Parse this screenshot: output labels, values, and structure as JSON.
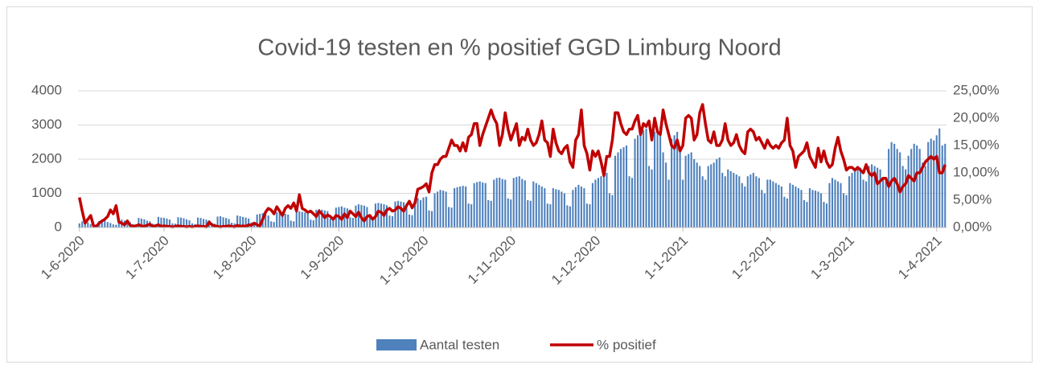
{
  "chart_data": {
    "type": "bar-line",
    "title": "Covid-19 testen en % positief GGD Limburg Noord",
    "categories": [
      "1-6-2020",
      null,
      null,
      null,
      null,
      null,
      null,
      null,
      null,
      null,
      null,
      null,
      null,
      null,
      null,
      null,
      null,
      null,
      null,
      null,
      null,
      null,
      null,
      null,
      null,
      null,
      null,
      null,
      null,
      null,
      "1-7-2020",
      null,
      null,
      null,
      null,
      null,
      null,
      null,
      null,
      null,
      null,
      null,
      null,
      null,
      null,
      null,
      null,
      null,
      null,
      null,
      null,
      null,
      null,
      null,
      null,
      null,
      null,
      null,
      null,
      null,
      null,
      "1-8-2020",
      null,
      null,
      null,
      null,
      null,
      null,
      null,
      null,
      null,
      null,
      null,
      null,
      null,
      null,
      null,
      null,
      null,
      null,
      null,
      null,
      null,
      null,
      null,
      null,
      null,
      null,
      null,
      null,
      null,
      null,
      "1-9-2020",
      null,
      null,
      null,
      null,
      null,
      null,
      null,
      null,
      null,
      null,
      null,
      null,
      null,
      null,
      null,
      null,
      null,
      null,
      null,
      null,
      null,
      null,
      null,
      null,
      null,
      null,
      null,
      null,
      null,
      "1-10-2020",
      null,
      null,
      null,
      null,
      null,
      null,
      null,
      null,
      null,
      null,
      null,
      null,
      null,
      null,
      null,
      null,
      null,
      null,
      null,
      null,
      null,
      null,
      null,
      null,
      null,
      null,
      null,
      null,
      null,
      null,
      "1-11-2020",
      null,
      null,
      null,
      null,
      null,
      null,
      null,
      null,
      null,
      null,
      null,
      null,
      null,
      null,
      null,
      null,
      null,
      null,
      null,
      null,
      null,
      null,
      null,
      null,
      null,
      null,
      null,
      null,
      null,
      "1-12-2020",
      null,
      null,
      null,
      null,
      null,
      null,
      null,
      null,
      null,
      null,
      null,
      null,
      null,
      null,
      null,
      null,
      null,
      null,
      null,
      null,
      null,
      null,
      null,
      null,
      null,
      null,
      null,
      null,
      null,
      null,
      "1-1-2021",
      null,
      null,
      null,
      null,
      null,
      null,
      null,
      null,
      null,
      null,
      null,
      null,
      null,
      null,
      null,
      null,
      null,
      null,
      null,
      null,
      null,
      null,
      null,
      null,
      null,
      null,
      null,
      null,
      null,
      null,
      "1-2-2021",
      null,
      null,
      null,
      null,
      null,
      null,
      null,
      null,
      null,
      null,
      null,
      null,
      null,
      null,
      null,
      null,
      null,
      null,
      null,
      null,
      null,
      null,
      null,
      null,
      null,
      null,
      null,
      "1-3-2021",
      null,
      null,
      null,
      null,
      null,
      null,
      null,
      null,
      null,
      null,
      null,
      null,
      null,
      null,
      null,
      null,
      null,
      null,
      null,
      null,
      null,
      null,
      null,
      null,
      null,
      null,
      null,
      null,
      null,
      null,
      "1-4-2021",
      null,
      null,
      null
    ],
    "series": [
      {
        "name": "Aantal testen",
        "color": "#4f81bd",
        "type": "bar",
        "values": [
          120,
          180,
          200,
          150,
          100,
          60,
          70,
          190,
          220,
          210,
          160,
          130,
          90,
          80,
          250,
          230,
          200,
          180,
          150,
          100,
          90,
          280,
          260,
          240,
          200,
          180,
          110,
          100,
          310,
          290,
          280,
          260,
          230,
          120,
          110,
          300,
          290,
          270,
          240,
          210,
          120,
          100,
          290,
          280,
          250,
          230,
          210,
          130,
          110,
          320,
          330,
          300,
          280,
          250,
          140,
          120,
          350,
          330,
          310,
          290,
          260,
          150,
          130,
          380,
          400,
          420,
          380,
          350,
          180,
          160,
          450,
          430,
          420,
          400,
          380,
          200,
          180,
          450,
          470,
          460,
          440,
          420,
          230,
          210,
          520,
          540,
          520,
          500,
          480,
          260,
          240,
          580,
          600,
          620,
          580,
          560,
          300,
          280,
          640,
          680,
          660,
          640,
          600,
          320,
          300,
          700,
          720,
          700,
          680,
          650,
          350,
          330,
          760,
          780,
          760,
          740,
          700,
          380,
          360,
          820,
          860,
          800,
          880,
          900,
          500,
          480,
          1000,
          1050,
          1100,
          1080,
          1050,
          600,
          580,
          1150,
          1180,
          1200,
          1220,
          1200,
          700,
          680,
          1300,
          1330,
          1350,
          1320,
          1300,
          800,
          780,
          1400,
          1450,
          1460,
          1420,
          1400,
          850,
          820,
          1450,
          1480,
          1500,
          1420,
          1380,
          800,
          780,
          1350,
          1300,
          1250,
          1200,
          1150,
          700,
          680,
          1150,
          1120,
          1100,
          1050,
          1000,
          650,
          620,
          1100,
          1180,
          1250,
          1200,
          1150,
          700,
          680,
          1300,
          1400,
          1450,
          1500,
          1550,
          1600,
          1000,
          950,
          2100,
          2200,
          2300,
          2350,
          2400,
          1500,
          1450,
          2600,
          2700,
          2800,
          2850,
          2900,
          1800,
          1700,
          2800,
          2900,
          2950,
          2200,
          1900,
          1400,
          2600,
          2700,
          2800,
          2300,
          1400,
          2100,
          2150,
          2200,
          2000,
          1900,
          1800,
          1500,
          1400,
          1800,
          1850,
          1900,
          2000,
          2050,
          1600,
          1500,
          1700,
          1650,
          1600,
          1550,
          1500,
          1300,
          1200,
          1500,
          1550,
          1600,
          1500,
          1450,
          1100,
          1000,
          1400,
          1400,
          1350,
          1300,
          1250,
          1200,
          900,
          850,
          1300,
          1250,
          1200,
          1150,
          1100,
          800,
          750,
          1150,
          1100,
          1080,
          1050,
          1000,
          750,
          700,
          1300,
          1450,
          1400,
          1350,
          1300,
          1000,
          950,
          1500,
          1600,
          1650,
          1700,
          1750,
          1400,
          1350,
          1800,
          1850,
          1800,
          1750,
          1700,
          1400,
          1350,
          2300,
          2500,
          2450,
          2300,
          2200,
          1800,
          1700,
          2100,
          2300,
          2450,
          2400,
          2300,
          1900,
          1800,
          2500,
          2600,
          2550,
          2700,
          2900,
          2400,
          2450
        ]
      },
      {
        "name": "% positief",
        "color": "#c00000",
        "type": "line",
        "axis": "y2",
        "values": [
          5.5,
          3.0,
          0.8,
          1.5,
          2.2,
          0.3,
          0.2,
          0.8,
          1.2,
          1.5,
          2.0,
          3.2,
          2.5,
          4.0,
          1.0,
          0.8,
          0.5,
          1.2,
          0.4,
          0.2,
          0.3,
          0.5,
          0.3,
          0.2,
          0.4,
          0.6,
          0.2,
          0.3,
          0.5,
          0.2,
          0.3,
          0.2,
          0.2,
          0.1,
          0.2,
          0.3,
          0.2,
          0.2,
          0.1,
          0.2,
          0.1,
          0.2,
          0.3,
          0.2,
          0.2,
          0.1,
          1.0,
          0.5,
          0.3,
          0.2,
          0.1,
          0.2,
          0.2,
          0.3,
          0.2,
          0.1,
          0.4,
          0.2,
          0.3,
          0.2,
          0.5,
          0.4,
          0.8,
          0.5,
          0.3,
          1.5,
          2.8,
          3.5,
          3.2,
          2.5,
          3.8,
          3.0,
          2.2,
          3.5,
          4.0,
          3.5,
          4.5,
          3.0,
          6.0,
          3.5,
          3.2,
          2.8,
          3.0,
          2.5,
          2.0,
          3.0,
          2.5,
          1.8,
          2.3,
          2.0,
          1.5,
          2.2,
          2.0,
          1.5,
          2.5,
          1.8,
          3.0,
          2.5,
          2.0,
          2.8,
          1.8,
          1.2,
          2.0,
          2.2,
          1.5,
          2.0,
          3.0,
          2.8,
          2.2,
          3.2,
          3.5,
          3.0,
          3.2,
          3.8,
          3.5,
          3.0,
          4.0,
          4.8,
          3.6,
          4.5,
          7.0,
          7.2,
          7.5,
          8.0,
          6.5,
          10.0,
          11.5,
          11.5,
          12.5,
          13.0,
          13.0,
          14.5,
          16.0,
          15.0,
          15.0,
          14.0,
          15.5,
          14.0,
          16.5,
          17.0,
          19.0,
          19.0,
          15.0,
          17.0,
          18.5,
          20.0,
          21.5,
          20.0,
          19.0,
          15.0,
          17.0,
          21.0,
          18.0,
          16.0,
          17.5,
          19.0,
          15.0,
          16.5,
          16.0,
          18.0,
          16.0,
          15.0,
          15.5,
          17.0,
          19.5,
          16.0,
          15.5,
          13.0,
          18.0,
          15.5,
          14.0,
          13.5,
          14.5,
          15.0,
          12.0,
          11.0,
          16.0,
          17.0,
          21.5,
          15.0,
          13.5,
          10.5,
          14.0,
          13.0,
          14.0,
          12.0,
          9.5,
          13.0,
          13.0,
          16.0,
          21.0,
          21.0,
          19.0,
          17.5,
          17.0,
          18.0,
          18.0,
          19.5,
          20.5,
          17.0,
          19.0,
          18.5,
          19.5,
          16.0,
          20.0,
          17.5,
          17.0,
          21.5,
          19.0,
          17.0,
          15.0,
          14.5,
          16.0,
          14.0,
          15.0,
          20.0,
          20.5,
          20.0,
          16.0,
          17.0,
          21.0,
          22.5,
          19.0,
          16.0,
          15.5,
          17.5,
          15.0,
          15.0,
          16.0,
          19.0,
          16.0,
          15.0,
          15.5,
          17.0,
          15.0,
          14.0,
          13.5,
          17.5,
          18.0,
          17.5,
          16.0,
          16.5,
          15.5,
          14.5,
          16.0,
          15.0,
          14.5,
          15.0,
          14.5,
          15.5,
          16.0,
          20.0,
          15.0,
          14.0,
          11.0,
          13.0,
          13.5,
          14.0,
          15.5,
          13.0,
          12.0,
          11.0,
          14.5,
          12.0,
          14.0,
          12.0,
          11.0,
          11.5,
          14.5,
          16.5,
          14.0,
          12.5,
          10.5,
          11.0,
          11.0,
          10.5,
          11.0,
          10.5,
          10.0,
          11.5,
          10.0,
          9.5,
          10.0,
          8.0,
          8.5,
          9.0,
          9.0,
          7.5,
          8.5,
          9.0,
          8.0,
          6.5,
          7.5,
          8.0,
          9.5,
          9.0,
          8.5,
          10.0,
          10.0,
          11.0,
          12.0,
          12.5,
          13.0,
          12.5,
          13.0,
          10.0,
          10.0,
          11.5
        ]
      }
    ],
    "ylim": [
      0,
      4000
    ],
    "yticks": [
      0,
      1000,
      2000,
      3000,
      4000
    ],
    "y2lim": [
      0,
      25
    ],
    "y2ticks": [
      {
        "value": 0,
        "label": "0,00%"
      },
      {
        "value": 5,
        "label": "5,00%"
      },
      {
        "value": 10,
        "label": "10,00%"
      },
      {
        "value": 15,
        "label": "15,00%"
      },
      {
        "value": 20,
        "label": "20,00%"
      },
      {
        "value": 25,
        "label": "25,00%"
      }
    ],
    "grid": true,
    "legend": "bottom"
  }
}
